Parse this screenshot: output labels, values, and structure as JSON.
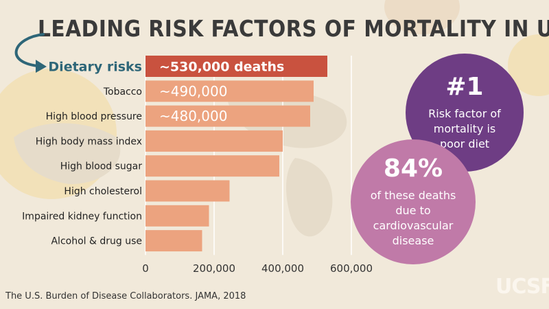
{
  "title": "LEADING RISK FACTORS OF MORTALITY IN U.S.",
  "source": "The U.S. Burden of Disease Collaborators. JAMA, 2018",
  "logo": "UCSF",
  "callouts": [
    {
      "big": "#1",
      "text": "Risk factor of mortality is poor diet",
      "color": "#6e3d84"
    },
    {
      "big": "84%",
      "text": "of these deaths due to cardiovascular disease",
      "color": "#c07aa8"
    }
  ],
  "colors": {
    "bar": "#eca37f",
    "highlight": "#c9523f",
    "arrow": "#2e6678",
    "background": "#f1e9da"
  },
  "chart_data": {
    "type": "bar",
    "orientation": "horizontal",
    "categories": [
      "Dietary risks",
      "Tobacco",
      "High blood pressure",
      "High body mass index",
      "High blood sugar",
      "High cholesterol",
      "Impaired kidney function",
      "Alcohol & drug use"
    ],
    "values": [
      530000,
      490000,
      480000,
      400000,
      390000,
      245000,
      185000,
      165000
    ],
    "bar_labels": [
      "~530,000 deaths",
      "~490,000",
      "~480,000",
      "",
      "",
      "",
      "",
      ""
    ],
    "highlight_index": 0,
    "xticks": [
      "0",
      "200,000",
      "400,000",
      "600,000"
    ],
    "xtick_values": [
      0,
      200000,
      400000,
      600000
    ],
    "xlim": [
      0,
      600000
    ],
    "grid": true
  }
}
